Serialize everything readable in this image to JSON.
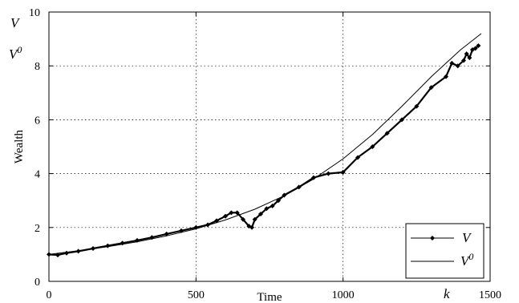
{
  "chart_data": {
    "type": "line",
    "xlabel": "Time",
    "ylabel": "Wealth",
    "xlim": [
      0,
      1500
    ],
    "ylim": [
      0,
      10
    ],
    "xticks": [
      "0",
      "500",
      "1000",
      "1500"
    ],
    "yticks": [
      "0",
      "2",
      "4",
      "6",
      "8",
      "10"
    ],
    "grid": true,
    "legend_position": "bottom-right",
    "corner_labels": {
      "top_left_1": "V",
      "top_left_2": "V",
      "top_left_2_sup": "0",
      "x_end": "k"
    },
    "series": [
      {
        "name": "V",
        "name_sup": "",
        "style": "line-with-diamond-markers",
        "x": [
          0,
          30,
          60,
          100,
          150,
          200,
          250,
          300,
          350,
          400,
          450,
          500,
          540,
          570,
          600,
          620,
          640,
          660,
          680,
          690,
          700,
          720,
          740,
          760,
          780,
          800,
          850,
          900,
          950,
          1000,
          1050,
          1100,
          1150,
          1200,
          1250,
          1300,
          1350,
          1370,
          1390,
          1410,
          1420,
          1430,
          1440,
          1450,
          1460
        ],
        "y": [
          1.0,
          0.98,
          1.05,
          1.12,
          1.22,
          1.32,
          1.42,
          1.52,
          1.63,
          1.76,
          1.88,
          2.0,
          2.1,
          2.25,
          2.42,
          2.55,
          2.55,
          2.3,
          2.05,
          2.0,
          2.3,
          2.5,
          2.7,
          2.8,
          3.0,
          3.2,
          3.5,
          3.85,
          4.0,
          4.05,
          4.6,
          5.0,
          5.5,
          6.0,
          6.5,
          7.2,
          7.6,
          8.1,
          8.0,
          8.2,
          8.45,
          8.3,
          8.6,
          8.65,
          8.75
        ]
      },
      {
        "name": "V",
        "name_sup": "0",
        "style": "line",
        "x": [
          0,
          100,
          200,
          300,
          400,
          500,
          600,
          700,
          800,
          900,
          1000,
          1100,
          1200,
          1300,
          1400,
          1470
        ],
        "y": [
          1.0,
          1.14,
          1.29,
          1.47,
          1.69,
          1.95,
          2.28,
          2.68,
          3.18,
          3.8,
          4.55,
          5.45,
          6.5,
          7.6,
          8.6,
          9.2
        ]
      }
    ]
  }
}
